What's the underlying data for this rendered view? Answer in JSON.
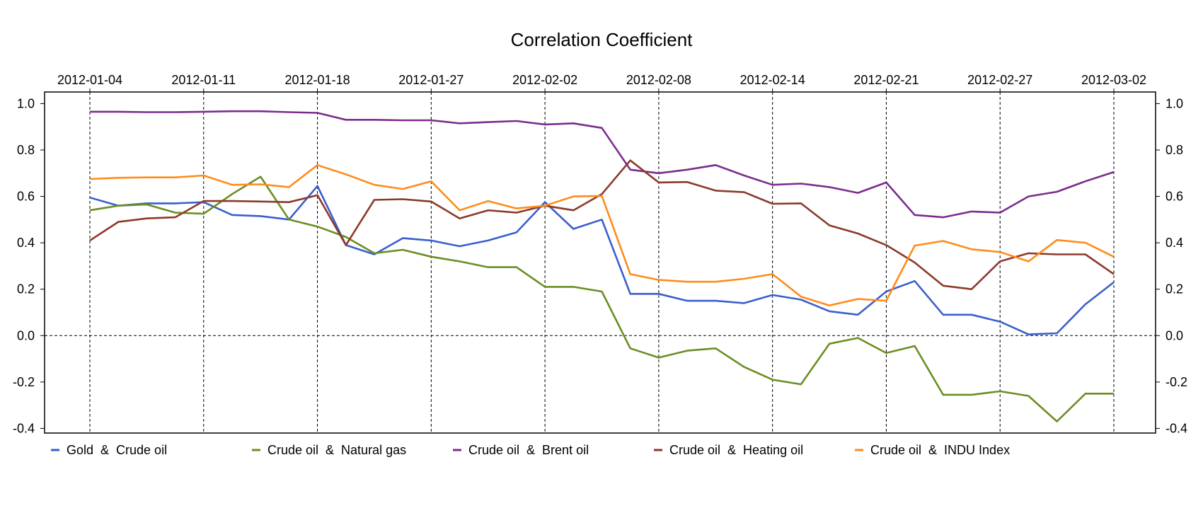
{
  "chart_data": {
    "type": "line",
    "title": "Correlation Coefficient",
    "ylim": [
      -0.42,
      1.05
    ],
    "y_ticks": [
      "1.0",
      "0.8",
      "0.6",
      "0.4",
      "0.2",
      "0.0",
      "-0.2",
      "-0.4"
    ],
    "y_tick_values": [
      1.0,
      0.8,
      0.6,
      0.4,
      0.2,
      0.0,
      -0.2,
      -0.4
    ],
    "x_tick_labels": [
      "2012-01-04",
      "2012-01-11",
      "2012-01-18",
      "2012-01-27",
      "2012-02-02",
      "2012-02-08",
      "2012-02-14",
      "2012-02-21",
      "2012-02-27",
      "2012-03-02"
    ],
    "x_tick_index": [
      0,
      4,
      8,
      12,
      16,
      20,
      24,
      28,
      32,
      36
    ],
    "x_count": 37,
    "grid": "vertical dashed at date ticks, dashed zero line",
    "legend_placement": "bottom",
    "series": [
      {
        "name": "Gold  &  Crude oil",
        "color": "#3a5fcd",
        "values": [
          0.595,
          0.56,
          0.57,
          0.57,
          0.575,
          0.52,
          0.515,
          0.5,
          0.645,
          0.39,
          0.35,
          0.42,
          0.41,
          0.385,
          0.41,
          0.445,
          0.575,
          0.46,
          0.5,
          0.18,
          0.18,
          0.15,
          0.15,
          0.14,
          0.175,
          0.155,
          0.105,
          0.09,
          0.19,
          0.235,
          0.09,
          0.09,
          0.06,
          0.005,
          0.01,
          0.135,
          0.23
        ]
      },
      {
        "name": "Crude oil  &  Natural gas",
        "color": "#6b8e23",
        "values": [
          0.54,
          0.56,
          0.565,
          0.53,
          0.525,
          0.61,
          0.685,
          0.5,
          0.47,
          0.425,
          0.355,
          0.37,
          0.34,
          0.32,
          0.295,
          0.295,
          0.21,
          0.21,
          0.19,
          -0.055,
          -0.095,
          -0.065,
          -0.055,
          -0.135,
          -0.19,
          -0.21,
          -0.035,
          -0.01,
          -0.075,
          -0.045,
          -0.255,
          -0.255,
          -0.24,
          -0.26,
          -0.37,
          -0.25,
          -0.25
        ]
      },
      {
        "name": "Crude oil  &  Brent oil",
        "color": "#7b2d8e",
        "values": [
          0.965,
          0.965,
          0.963,
          0.963,
          0.965,
          0.967,
          0.967,
          0.963,
          0.96,
          0.93,
          0.93,
          0.928,
          0.928,
          0.915,
          0.92,
          0.925,
          0.91,
          0.915,
          0.895,
          0.715,
          0.7,
          0.715,
          0.735,
          0.69,
          0.65,
          0.655,
          0.64,
          0.615,
          0.66,
          0.52,
          0.51,
          0.535,
          0.53,
          0.6,
          0.62,
          0.665,
          0.705
        ]
      },
      {
        "name": "Crude oil  &  Heating oil",
        "color": "#8b3a2a",
        "values": [
          0.41,
          0.49,
          0.505,
          0.51,
          0.58,
          0.58,
          0.578,
          0.575,
          0.605,
          0.39,
          0.585,
          0.588,
          0.578,
          0.505,
          0.54,
          0.53,
          0.56,
          0.54,
          0.61,
          0.755,
          0.66,
          0.662,
          0.625,
          0.618,
          0.568,
          0.57,
          0.475,
          0.44,
          0.39,
          0.315,
          0.215,
          0.2,
          0.32,
          0.355,
          0.35,
          0.35,
          0.265
        ]
      },
      {
        "name": "Crude oil  &  INDU Index",
        "color": "#ff8c1a",
        "values": [
          0.675,
          0.68,
          0.682,
          0.682,
          0.69,
          0.65,
          0.652,
          0.64,
          0.735,
          0.695,
          0.65,
          0.632,
          0.665,
          0.54,
          0.58,
          0.548,
          0.56,
          0.6,
          0.602,
          0.265,
          0.24,
          0.232,
          0.232,
          0.245,
          0.265,
          0.168,
          0.13,
          0.158,
          0.15,
          0.388,
          0.408,
          0.372,
          0.36,
          0.32,
          0.412,
          0.4,
          0.34
        ]
      }
    ]
  }
}
